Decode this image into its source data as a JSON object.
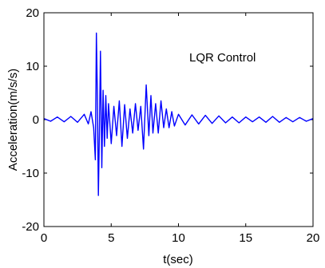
{
  "chart_data": {
    "type": "line",
    "title": "",
    "xlabel": "t(sec)",
    "ylabel": "Acceleration(m/s/s)",
    "xlim": [
      0,
      20
    ],
    "ylim": [
      -20,
      20
    ],
    "xticks": [
      0,
      5,
      10,
      15,
      20
    ],
    "yticks": [
      -20,
      -10,
      0,
      10,
      20
    ],
    "grid": false,
    "annotation": "LQR Control",
    "series": [
      {
        "color": "#0000ff",
        "x": [
          0,
          0.5,
          1.0,
          1.5,
          2.0,
          2.5,
          3.0,
          3.3,
          3.5,
          3.7,
          3.82,
          3.9,
          3.97,
          4.05,
          4.12,
          4.2,
          4.3,
          4.4,
          4.5,
          4.6,
          4.7,
          4.8,
          5.0,
          5.2,
          5.4,
          5.6,
          5.8,
          6.0,
          6.2,
          6.4,
          6.6,
          6.8,
          7.0,
          7.2,
          7.4,
          7.6,
          7.8,
          7.95,
          8.1,
          8.3,
          8.5,
          8.7,
          8.9,
          9.1,
          9.3,
          9.5,
          9.7,
          10.0,
          10.5,
          11.0,
          11.5,
          12.0,
          12.5,
          13.0,
          13.5,
          14.0,
          14.5,
          15.0,
          15.5,
          16.0,
          16.5,
          17.0,
          17.5,
          18.0,
          18.5,
          19.0,
          19.5,
          20.0
        ],
        "y": [
          0.2,
          -0.3,
          0.5,
          -0.4,
          0.6,
          -0.5,
          1.0,
          -0.8,
          1.5,
          -1.5,
          -7.5,
          16.2,
          5.0,
          -14.2,
          -3.0,
          12.8,
          -9.0,
          5.5,
          -5.0,
          4.5,
          -3.5,
          3.0,
          -4.5,
          2.5,
          -3.0,
          3.5,
          -5.0,
          2.8,
          -3.5,
          2.0,
          -2.5,
          3.0,
          -2.0,
          2.5,
          -5.5,
          6.5,
          -3.0,
          4.5,
          -2.5,
          3.0,
          -2.5,
          3.5,
          -1.5,
          2.0,
          -1.5,
          1.5,
          -1.2,
          1.0,
          -1.0,
          0.9,
          -0.8,
          0.8,
          -0.7,
          0.7,
          -0.6,
          0.5,
          -0.6,
          0.5,
          -0.4,
          0.5,
          -0.5,
          0.6,
          -0.5,
          0.4,
          -0.4,
          0.4,
          -0.3,
          0.2
        ]
      }
    ]
  }
}
